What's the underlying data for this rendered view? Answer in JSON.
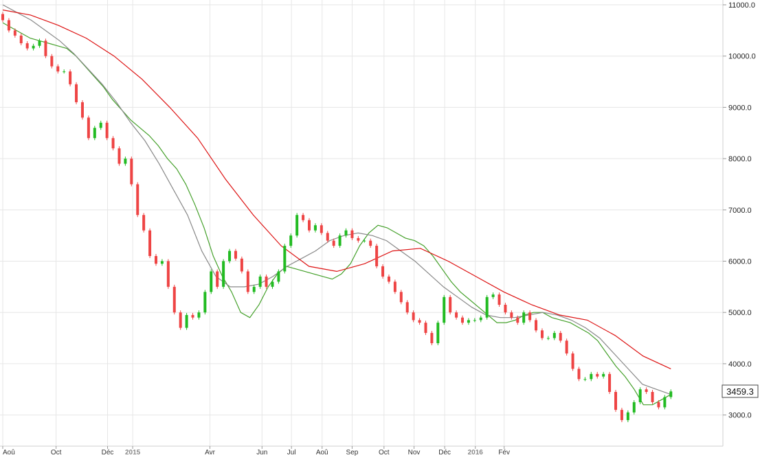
{
  "chart_data": {
    "type": "candlestick",
    "title": "",
    "xlabel": "",
    "ylabel": "",
    "ylim": [
      2450,
      11000
    ],
    "grid": true,
    "y_ticks": [
      "11000.0",
      "10000.0",
      "9000.0",
      "8000.0",
      "7000.0",
      "6000.0",
      "5000.0",
      "4000.0",
      "3000.0"
    ],
    "y_tick_values": [
      11000,
      10000,
      9000,
      8000,
      7000,
      6000,
      5000,
      4000,
      3000
    ],
    "x_ticks": [
      {
        "label": "Aoû",
        "x": 0,
        "year": false
      },
      {
        "label": "Oct",
        "x": 8.7,
        "year": false
      },
      {
        "label": "Déc",
        "x": 17.1,
        "year": false
      },
      {
        "label": "2015",
        "x": 21.2,
        "year": true
      },
      {
        "label": "Avr",
        "x": 33.8,
        "year": false
      },
      {
        "label": "Jun",
        "x": 42.3,
        "year": false
      },
      {
        "label": "Jul",
        "x": 47.1,
        "year": false
      },
      {
        "label": "Aoû",
        "x": 52.1,
        "year": false
      },
      {
        "label": "Sep",
        "x": 57.0,
        "year": false
      },
      {
        "label": "Oct",
        "x": 62.2,
        "year": false
      },
      {
        "label": "Nov",
        "x": 67.1,
        "year": false
      },
      {
        "label": "Déc",
        "x": 72.1,
        "year": false
      },
      {
        "label": "2016",
        "x": 77.1,
        "year": true
      },
      {
        "label": "Fév",
        "x": 81.8,
        "year": false
      }
    ],
    "last_value": "3459.3",
    "colors": {
      "up": "#22bb22",
      "down": "#ee4444",
      "ma_short": "#44a02a",
      "ma_mid": "#888888",
      "ma_long": "#dd1111",
      "grid": "#e6e6e6"
    },
    "candles_c": [
      10700,
      10500,
      10400,
      10250,
      10150,
      10200,
      10300,
      10000,
      9800,
      9700,
      9700,
      9450,
      9100,
      8800,
      8400,
      8600,
      8700,
      8400,
      8200,
      7900,
      8000,
      7500,
      6900,
      6600,
      6100,
      5950,
      6000,
      5500,
      5000,
      4700,
      4950,
      4900,
      5000,
      5400,
      5800,
      5500,
      6000,
      6200,
      6050,
      5800,
      5400,
      5500,
      5700,
      5500,
      5600,
      5800,
      6300,
      6500,
      6900,
      6800,
      6600,
      6700,
      6550,
      6400,
      6300,
      6500,
      6600,
      6450,
      6400,
      6400,
      6300,
      5900,
      5700,
      5600,
      5400,
      5200,
      5000,
      4850,
      4800,
      4600,
      4400,
      4800,
      5300,
      5000,
      4900,
      4800,
      4850,
      4850,
      4900,
      5300,
      5350,
      5150,
      5000,
      4900,
      4800,
      5000,
      4850,
      4650,
      4500,
      4500,
      4600,
      4450,
      4200,
      3900,
      3700,
      3700,
      3800,
      3750,
      3800,
      3450,
      3100,
      2900,
      3050,
      3250,
      3500,
      3450,
      3250,
      3150,
      3350,
      3459.3
    ],
    "moving_averages": [
      {
        "values": [
          10650,
          10550,
          10450,
          10350,
          10300,
          10250,
          10200,
          10150,
          10000,
          9800,
          9600,
          9400,
          9150,
          8950,
          8750,
          8600,
          8450,
          8250,
          8000,
          7800,
          7500,
          7100,
          6650,
          6100,
          5700,
          5400,
          5000,
          4900,
          5150,
          5500,
          5750,
          5900,
          5850,
          5800,
          5750,
          5700,
          5650,
          5750,
          5950,
          6300,
          6550,
          6700,
          6650,
          6550,
          6450,
          6400,
          6300,
          6100,
          5850,
          5600,
          5400,
          5250,
          5100,
          4950,
          4800,
          4800,
          4850,
          4950,
          5000,
          5000,
          4900,
          4850,
          4800,
          4700,
          4600,
          4450,
          4200,
          3950,
          3750,
          3500,
          3200,
          3200,
          3300,
          3400
        ],
        "x_start": 0,
        "name": "ma-short"
      },
      {
        "values": [
          11000,
          10850,
          10700,
          10500,
          10300,
          10050,
          9750,
          9450,
          9100,
          8700,
          8350,
          7900,
          7400,
          6900,
          6200,
          5700,
          5500,
          5500,
          5550,
          5700,
          5900,
          6050,
          6200,
          6400,
          6500,
          6550,
          6500,
          6400,
          6200,
          6000,
          5750,
          5500,
          5300,
          5100,
          4950,
          4900,
          4900,
          4950,
          5000,
          4950,
          4850,
          4700,
          4500,
          4200,
          3900,
          3600,
          3500,
          3400
        ],
        "x_start": 0,
        "name": "ma-mid"
      },
      {
        "values": [
          10900,
          10800,
          10600,
          10350,
          10000,
          9550,
          9000,
          8400,
          7600,
          6900,
          6300,
          5900,
          5800,
          5950,
          6200,
          6250,
          6000,
          5700,
          5400,
          5150,
          4950,
          4850,
          4550,
          4150,
          3900
        ],
        "x_start": 0,
        "name": "ma-long"
      }
    ]
  }
}
